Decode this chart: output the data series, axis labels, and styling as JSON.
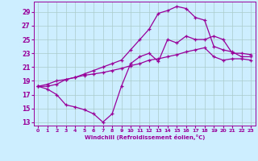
{
  "xlabel": "Windchill (Refroidissement éolien,°C)",
  "bg_color": "#cceeff",
  "line_color": "#990099",
  "grid_color": "#aacccc",
  "xlim": [
    -0.5,
    23.5
  ],
  "ylim": [
    12.5,
    30.5
  ],
  "xticks": [
    0,
    1,
    2,
    3,
    4,
    5,
    6,
    7,
    8,
    9,
    10,
    11,
    12,
    13,
    14,
    15,
    16,
    17,
    18,
    19,
    20,
    21,
    22,
    23
  ],
  "yticks": [
    13,
    15,
    17,
    19,
    21,
    23,
    25,
    27,
    29
  ],
  "line1_x": [
    0,
    1,
    2,
    3,
    4,
    5,
    6,
    7,
    8,
    9,
    10,
    11,
    12,
    13,
    14,
    15,
    16,
    17,
    18,
    19,
    20,
    21,
    22,
    23
  ],
  "line1_y": [
    18.2,
    17.8,
    17.0,
    15.5,
    15.2,
    14.8,
    14.2,
    13.0,
    14.2,
    18.2,
    21.5,
    22.5,
    23.0,
    21.8,
    25.0,
    24.5,
    25.5,
    25.0,
    25.0,
    25.5,
    25.0,
    23.0,
    23.0,
    22.8
  ],
  "line2_x": [
    0,
    1,
    2,
    3,
    4,
    5,
    6,
    7,
    8,
    9,
    10,
    11,
    12,
    13,
    14,
    15,
    16,
    17,
    18,
    19,
    20,
    21,
    22,
    23
  ],
  "line2_y": [
    18.2,
    18.5,
    19.0,
    19.2,
    19.5,
    19.8,
    20.0,
    20.2,
    20.5,
    20.8,
    21.2,
    21.5,
    22.0,
    22.2,
    22.5,
    22.8,
    23.2,
    23.5,
    23.8,
    22.5,
    22.0,
    22.2,
    22.2,
    22.0
  ],
  "line3_x": [
    0,
    1,
    2,
    3,
    4,
    5,
    6,
    7,
    8,
    9,
    10,
    11,
    12,
    13,
    14,
    15,
    16,
    17,
    18,
    19,
    20,
    21,
    22,
    23
  ],
  "line3_y": [
    18.2,
    18.2,
    18.5,
    19.2,
    19.5,
    20.0,
    20.5,
    21.0,
    21.5,
    22.0,
    23.5,
    25.0,
    26.5,
    28.8,
    29.2,
    29.8,
    29.5,
    28.2,
    27.8,
    24.0,
    23.5,
    23.2,
    22.5,
    22.5
  ]
}
